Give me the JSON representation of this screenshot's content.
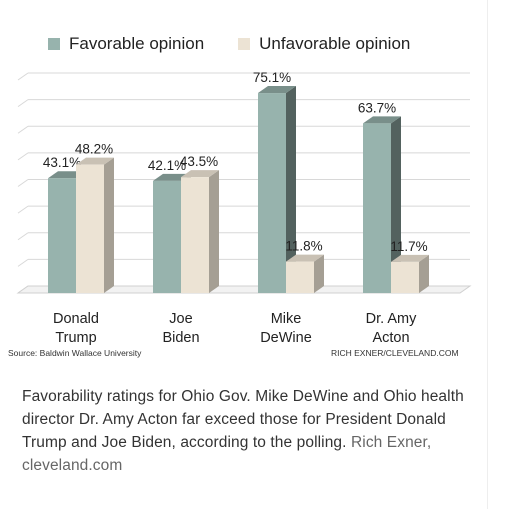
{
  "chart_data": {
    "type": "bar",
    "categories": [
      "Donald\nTrump",
      "Joe\nBiden",
      "Mike\nDeWine",
      "Dr. Amy\nActon"
    ],
    "series": [
      {
        "name": "Favorable opinion",
        "values": [
          43.1,
          42.1,
          75.1,
          63.7
        ],
        "labels": [
          "43.1%",
          "42.1%",
          "75.1%",
          "63.7%"
        ],
        "color": "#97b3ad"
      },
      {
        "name": "Unfavorable opinion",
        "values": [
          48.2,
          43.5,
          11.8,
          11.7
        ],
        "labels": [
          "48.2%",
          "43.5%",
          "11.8%",
          "11.7%"
        ],
        "color": "#ece3d4"
      }
    ],
    "ylim": [
      0,
      80
    ],
    "grid": true,
    "legend": "top",
    "title": "",
    "xlabel": "",
    "ylabel": ""
  },
  "source": "Source: Baldwin Wallace University",
  "chart_credit": "RICH EXNER/CLEVELAND.COM",
  "caption": {
    "text": "Favorability ratings for Ohio Gov. Mike DeWine and Ohio health director Dr. Amy Acton far exceed those for President Donald Trump and Joe Biden, according to the polling.",
    "credit": "Rich Exner, cleveland.com"
  }
}
